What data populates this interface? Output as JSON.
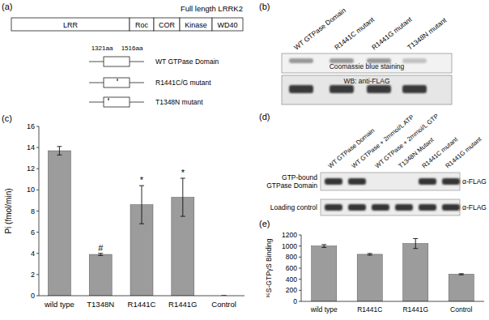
{
  "panels": {
    "a": "(a)",
    "b": "(b)",
    "c": "(c)",
    "d": "(d)",
    "e": "(e)"
  },
  "diagram": {
    "title": "Full length LRRK2",
    "domains": [
      "LRR",
      "Roc",
      "COR",
      "Kinase",
      "WD40"
    ],
    "range_labels": [
      "1321aa",
      "1516aa"
    ],
    "constructs": [
      "WT GTPase Domain",
      "R1441C/G mutant",
      "T1348N mutant"
    ]
  },
  "blot_b": {
    "lanes": [
      "WT GTPase Domain",
      "R1441C mutant",
      "R1441G mutant",
      "T1348N mutant"
    ],
    "rows": [
      "Coomassie blue staining",
      "WB: anti-FLAG"
    ]
  },
  "blot_d": {
    "lanes": [
      "WT GTPase Domain",
      "WT GTPase + 2mmol/L ATP",
      "WT GTPase + 2mmol/L GTP",
      "T1348N Mutant",
      "R1441C mutant",
      "R1441G mutant"
    ],
    "rows": [
      {
        "label_lines": [
          "GTP-bound",
          "GTPase Domain"
        ],
        "antibody": "α-FLAG",
        "present": [
          true,
          true,
          false,
          false,
          true,
          true
        ]
      },
      {
        "label_lines": [
          "Loading control"
        ],
        "antibody": "α-FLAG",
        "present": [
          true,
          true,
          true,
          true,
          true,
          true
        ]
      }
    ]
  },
  "chart_data": [
    {
      "type": "bar",
      "y_label": "Pi (fmol/min)",
      "categories": [
        "wild type",
        "T1348N",
        "R1441C",
        "R1441G",
        "Control"
      ],
      "values": [
        13.7,
        3.9,
        8.6,
        9.3,
        0
      ],
      "errors": [
        0.4,
        0.1,
        1.8,
        1.8,
        0
      ],
      "annotations": [
        null,
        "#",
        "*",
        "*",
        null
      ],
      "color": "#9c9c9c",
      "ylim": [
        0,
        16
      ],
      "yticks": [
        0,
        2,
        4,
        6,
        8,
        10,
        12,
        14,
        16
      ]
    },
    {
      "type": "bar",
      "y_label": "³⁵S-GTPγS Binding",
      "categories": [
        "wild type",
        "R1441C",
        "R1441G",
        "Control"
      ],
      "values": [
        1000,
        850,
        1045,
        490
      ],
      "errors": [
        25,
        15,
        90,
        10
      ],
      "color": "#9c9c9c",
      "ylim": [
        0,
        1200
      ],
      "yticks": [
        0,
        200,
        400,
        600,
        800,
        1000,
        1200
      ]
    }
  ]
}
